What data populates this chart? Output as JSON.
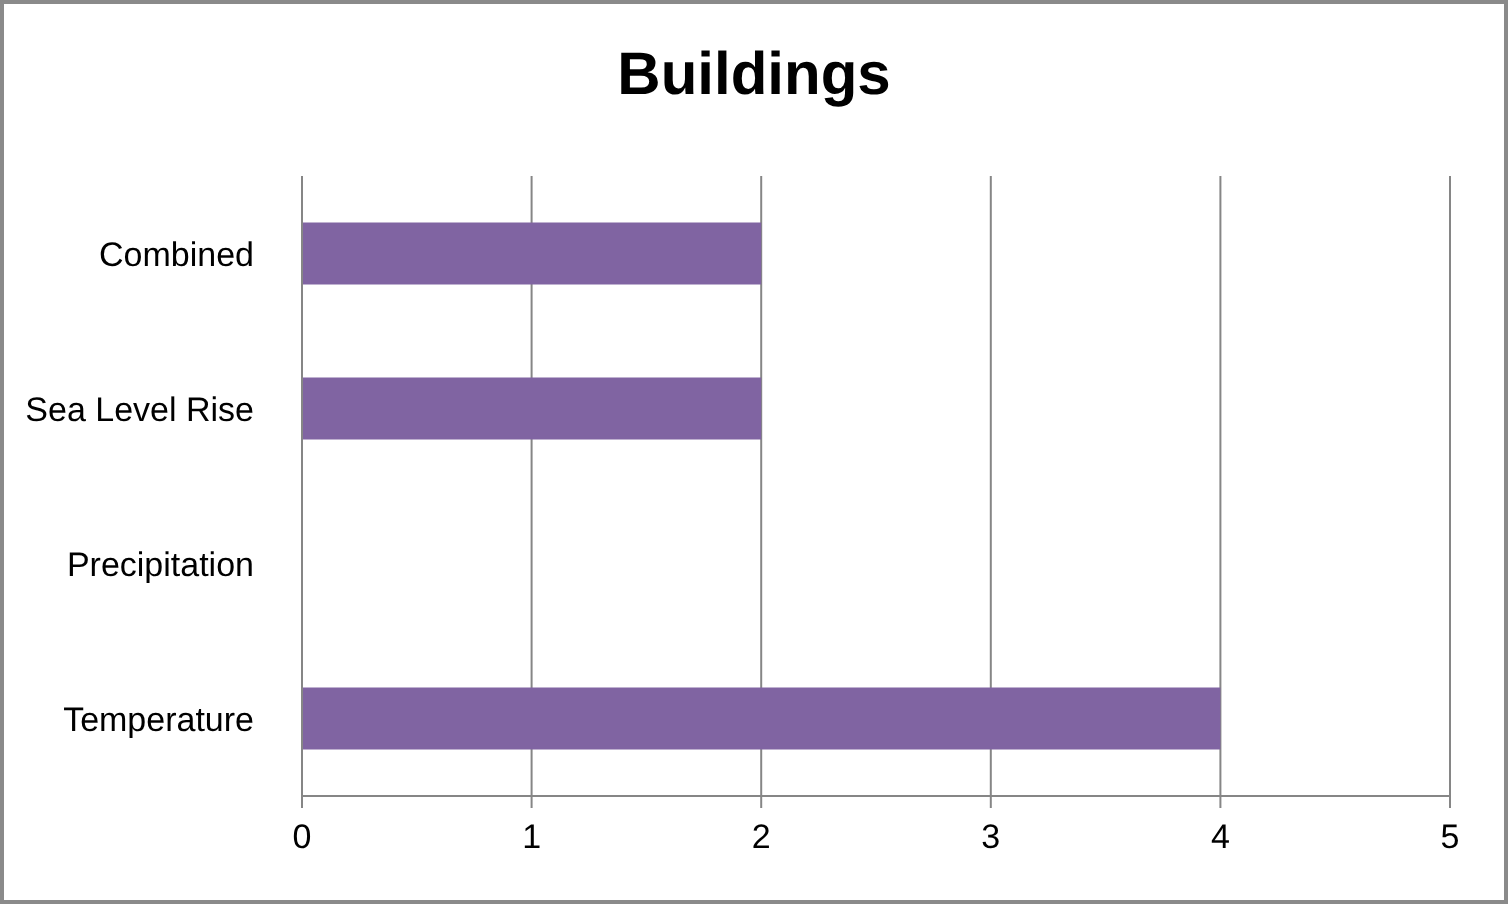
{
  "chart_data": {
    "type": "bar",
    "title": "Buildings",
    "orientation": "horizontal",
    "categories": [
      "Combined",
      "Sea Level Rise",
      "Precipitation",
      "Temperature"
    ],
    "values": [
      2,
      2,
      0,
      4
    ],
    "color": "#8064a2",
    "xlim": [
      0,
      5
    ],
    "xticks": [
      0,
      1,
      2,
      3,
      4,
      5
    ],
    "grid": "x"
  }
}
